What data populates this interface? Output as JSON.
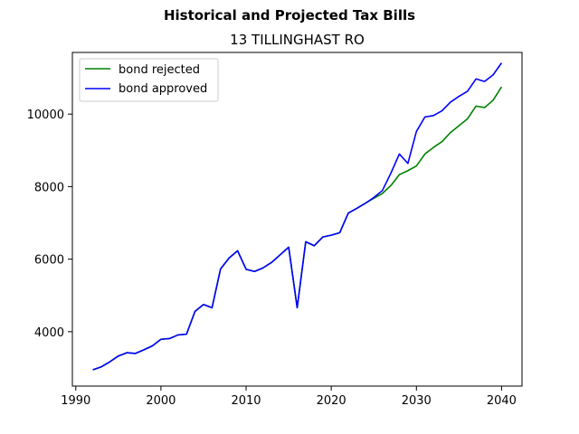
{
  "chart_data": {
    "type": "line",
    "title": "Historical and Projected Tax Bills",
    "subtitle": "13 TILLINGHAST RO",
    "xlabel": "",
    "ylabel": "",
    "xlim": [
      1989.6,
      2042.4
    ],
    "ylim": [
      2500,
      11700
    ],
    "xticks": [
      1990,
      2000,
      2010,
      2020,
      2030,
      2040
    ],
    "yticks": [
      4000,
      6000,
      8000,
      10000
    ],
    "grid": false,
    "legend": "top-left",
    "series": [
      {
        "name": "bond rejected",
        "color": "#008000",
        "points": [
          [
            1992,
            2950
          ],
          [
            1993,
            3030
          ],
          [
            1994,
            3170
          ],
          [
            1995,
            3330
          ],
          [
            1996,
            3420
          ],
          [
            1997,
            3400
          ],
          [
            1998,
            3500
          ],
          [
            1999,
            3610
          ],
          [
            2000,
            3790
          ],
          [
            2001,
            3810
          ],
          [
            2002,
            3910
          ],
          [
            2003,
            3930
          ],
          [
            2004,
            4560
          ],
          [
            2005,
            4750
          ],
          [
            2006,
            4660
          ],
          [
            2007,
            5730
          ],
          [
            2008,
            6030
          ],
          [
            2009,
            6230
          ],
          [
            2010,
            5720
          ],
          [
            2011,
            5660
          ],
          [
            2012,
            5760
          ],
          [
            2013,
            5910
          ],
          [
            2014,
            6120
          ],
          [
            2015,
            6330
          ],
          [
            2016,
            4660
          ],
          [
            2017,
            6480
          ],
          [
            2018,
            6370
          ],
          [
            2019,
            6610
          ],
          [
            2020,
            6660
          ],
          [
            2021,
            6730
          ],
          [
            2022,
            7270
          ],
          [
            2023,
            7400
          ],
          [
            2024,
            7540
          ],
          [
            2025,
            7680
          ],
          [
            2026,
            7810
          ],
          [
            2027,
            8030
          ],
          [
            2028,
            8330
          ],
          [
            2029,
            8440
          ],
          [
            2030,
            8570
          ],
          [
            2031,
            8900
          ],
          [
            2032,
            9080
          ],
          [
            2033,
            9240
          ],
          [
            2034,
            9490
          ],
          [
            2035,
            9680
          ],
          [
            2036,
            9870
          ],
          [
            2037,
            10220
          ],
          [
            2038,
            10180
          ],
          [
            2039,
            10380
          ],
          [
            2040,
            10750
          ]
        ]
      },
      {
        "name": "bond approved",
        "color": "#0000ff",
        "points": [
          [
            1992,
            2950
          ],
          [
            1993,
            3030
          ],
          [
            1994,
            3170
          ],
          [
            1995,
            3330
          ],
          [
            1996,
            3420
          ],
          [
            1997,
            3400
          ],
          [
            1998,
            3500
          ],
          [
            1999,
            3610
          ],
          [
            2000,
            3790
          ],
          [
            2001,
            3810
          ],
          [
            2002,
            3910
          ],
          [
            2003,
            3930
          ],
          [
            2004,
            4560
          ],
          [
            2005,
            4750
          ],
          [
            2006,
            4660
          ],
          [
            2007,
            5730
          ],
          [
            2008,
            6030
          ],
          [
            2009,
            6230
          ],
          [
            2010,
            5720
          ],
          [
            2011,
            5660
          ],
          [
            2012,
            5760
          ],
          [
            2013,
            5910
          ],
          [
            2014,
            6120
          ],
          [
            2015,
            6330
          ],
          [
            2016,
            4660
          ],
          [
            2017,
            6480
          ],
          [
            2018,
            6370
          ],
          [
            2019,
            6610
          ],
          [
            2020,
            6660
          ],
          [
            2021,
            6730
          ],
          [
            2022,
            7270
          ],
          [
            2023,
            7400
          ],
          [
            2024,
            7540
          ],
          [
            2025,
            7700
          ],
          [
            2026,
            7890
          ],
          [
            2027,
            8370
          ],
          [
            2028,
            8900
          ],
          [
            2029,
            8640
          ],
          [
            2030,
            9520
          ],
          [
            2031,
            9920
          ],
          [
            2032,
            9960
          ],
          [
            2033,
            10090
          ],
          [
            2034,
            10330
          ],
          [
            2035,
            10490
          ],
          [
            2036,
            10630
          ],
          [
            2037,
            10970
          ],
          [
            2038,
            10900
          ],
          [
            2039,
            11080
          ],
          [
            2040,
            11410
          ]
        ]
      }
    ]
  }
}
